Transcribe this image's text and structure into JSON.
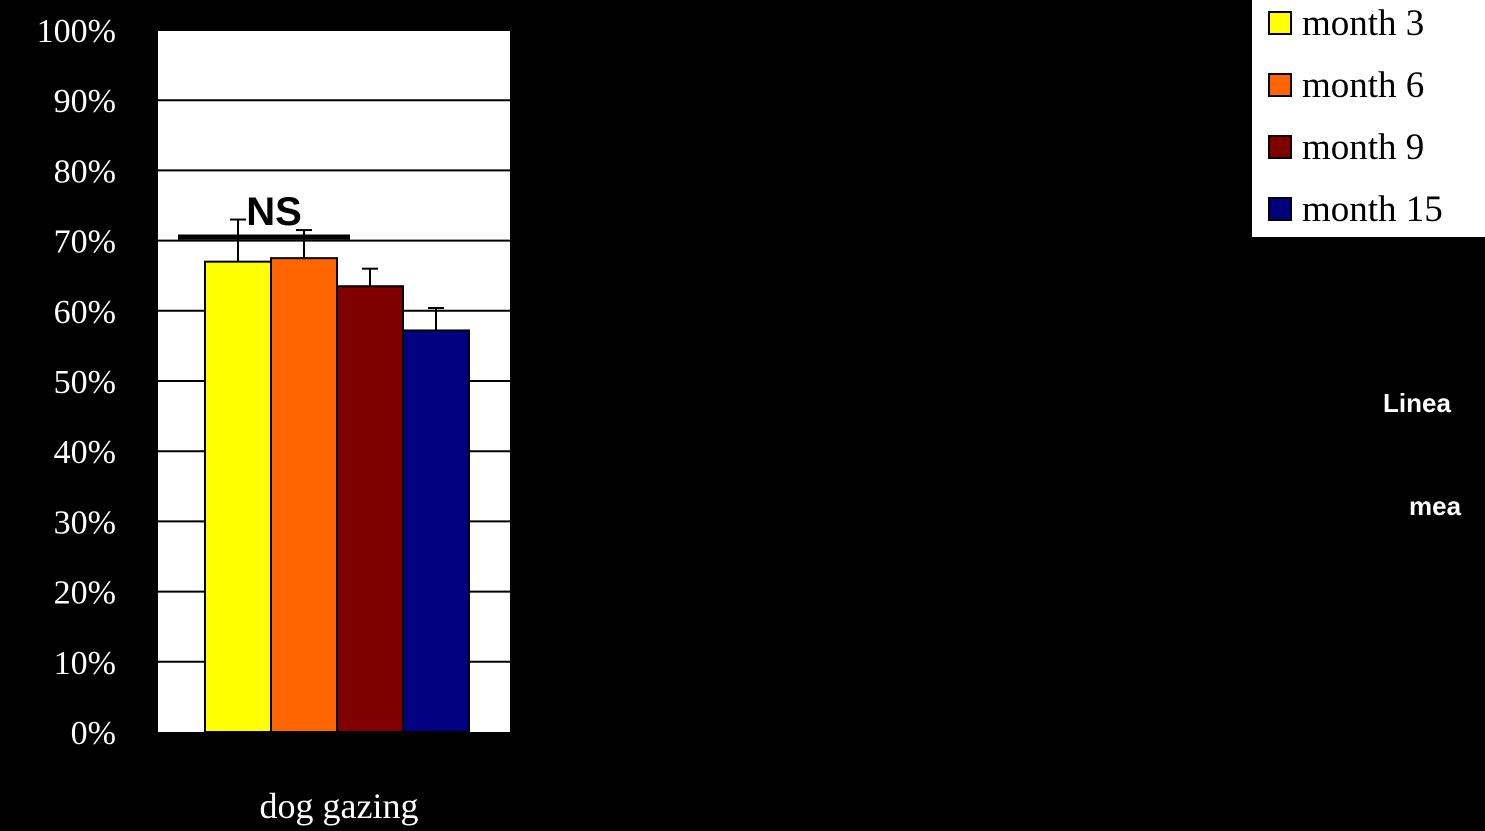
{
  "colors": {
    "background": "#000000",
    "plot_area": "#ffffff"
  },
  "chart_data": {
    "type": "bar",
    "categories": [
      "dog gazing"
    ],
    "series": [
      {
        "name": "month 3",
        "values": [
          0.67
        ],
        "error": [
          0.06
        ],
        "color": "#ffff00"
      },
      {
        "name": "month 6",
        "values": [
          0.675
        ],
        "error": [
          0.04
        ],
        "color": "#ff6600"
      },
      {
        "name": "month 9",
        "values": [
          0.635
        ],
        "error": [
          0.025
        ],
        "color": "#800000"
      },
      {
        "name": "month 15",
        "values": [
          0.572
        ],
        "error": [
          0.032
        ],
        "color": "#000080"
      }
    ],
    "ylim": [
      0,
      1
    ],
    "yticks": [
      "0%",
      "10%",
      "20%",
      "30%",
      "40%",
      "50%",
      "60%",
      "70%",
      "80%",
      "90%",
      "100%"
    ],
    "grid": true,
    "legend": "top-right",
    "annotations": [
      {
        "text": "NS",
        "span_series": [
          0,
          2
        ],
        "y": 0.745
      }
    ]
  },
  "side_text": [
    "Linea",
    "mea"
  ]
}
